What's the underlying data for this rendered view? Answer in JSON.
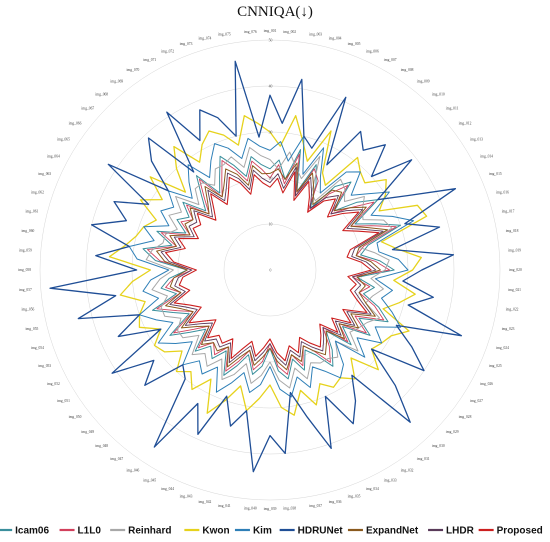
{
  "chart_data": {
    "type": "radar",
    "title": "CNNIQA(↓)",
    "rlim": [
      0,
      50
    ],
    "ring_ticks": [
      0,
      10,
      20,
      30,
      40,
      50
    ],
    "ring_tick_labels": [
      "0",
      "10",
      "20",
      "30",
      "40",
      "50"
    ],
    "grid": true,
    "legend_position": "bottom",
    "categories": [
      "img_001",
      "img_002",
      "img_003",
      "img_004",
      "img_005",
      "img_006",
      "img_007",
      "img_008",
      "img_009",
      "img_010",
      "img_011",
      "img_012",
      "img_013",
      "img_014",
      "img_015",
      "img_016",
      "img_017",
      "img_018",
      "img_019",
      "img_020",
      "img_021",
      "img_022",
      "img_023",
      "img_024",
      "img_025",
      "img_026",
      "img_027",
      "img_028",
      "img_029",
      "img_030",
      "img_031",
      "img_032",
      "img_033",
      "img_034",
      "img_035",
      "img_036",
      "img_037",
      "img_038",
      "img_039",
      "img_040",
      "img_041",
      "img_042",
      "img_043",
      "img_044",
      "img_045",
      "img_046",
      "img_047",
      "img_048",
      "img_049",
      "img_050",
      "img_051",
      "img_052",
      "img_053",
      "img_054",
      "img_055",
      "img_056",
      "img_057",
      "img_058",
      "img_059",
      "img_060",
      "img_061",
      "img_062",
      "img_063",
      "img_064",
      "img_065",
      "img_066",
      "img_067",
      "img_068",
      "img_069",
      "img_070",
      "img_071",
      "img_072",
      "img_073",
      "img_074",
      "img_075",
      "img_076"
    ],
    "series": [
      {
        "name": "Icam06",
        "color": "#3a8f9c",
        "width": 1.0,
        "values": [
          22,
          24,
          20,
          27,
          18,
          25,
          21,
          16,
          23,
          26,
          19,
          24,
          28,
          21,
          25,
          30,
          22,
          20,
          24,
          27,
          19,
          23,
          21,
          25,
          28,
          22,
          26,
          20,
          24,
          18,
          22,
          25,
          21,
          19,
          23,
          20,
          24,
          22,
          17,
          21,
          23,
          19,
          22,
          25,
          20,
          23,
          21,
          24,
          19,
          22,
          26,
          20,
          23,
          27,
          21,
          24,
          22,
          18,
          25,
          28,
          22,
          26,
          20,
          23,
          21,
          24,
          19,
          22,
          26,
          20,
          23,
          27,
          24,
          21,
          25,
          23
        ]
      },
      {
        "name": "L1L0",
        "color": "#d2405c",
        "width": 0.9,
        "values": [
          20,
          23,
          19,
          26,
          17,
          24,
          22,
          15,
          21,
          25,
          18,
          22,
          27,
          20,
          24,
          29,
          21,
          19,
          23,
          26,
          18,
          22,
          20,
          24,
          27,
          21,
          25,
          19,
          23,
          17,
          21,
          24,
          20,
          18,
          22,
          19,
          23,
          21,
          16,
          20,
          22,
          18,
          21,
          24,
          19,
          22,
          20,
          23,
          18,
          21,
          25,
          19,
          22,
          26,
          20,
          23,
          21,
          17,
          24,
          27,
          21,
          25,
          19,
          22,
          20,
          23,
          18,
          21,
          25,
          19,
          22,
          26,
          23,
          20,
          24,
          22
        ]
      },
      {
        "name": "Reinhard",
        "color": "#a8a8a8",
        "width": 1.0,
        "values": [
          24,
          22,
          26,
          23,
          21,
          27,
          19,
          18,
          25,
          24,
          22,
          26,
          24,
          23,
          27,
          28,
          20,
          23,
          26,
          25,
          22,
          25,
          23,
          22,
          26,
          24,
          23,
          22,
          26,
          21,
          24,
          23,
          23,
          22,
          25,
          22,
          26,
          24,
          20,
          23,
          25,
          21,
          24,
          26,
          22,
          25,
          23,
          25,
          21,
          24,
          24,
          22,
          25,
          25,
          23,
          26,
          24,
          21,
          27,
          26,
          24,
          24,
          22,
          25,
          23,
          26,
          21,
          24,
          24,
          22,
          25,
          25,
          26,
          23,
          27,
          25
        ]
      },
      {
        "name": "Kwon",
        "color": "#e6d21c",
        "width": 1.3,
        "values": [
          30,
          27,
          34,
          29,
          25,
          33,
          24,
          22,
          31,
          29,
          28,
          32,
          30,
          27,
          35,
          36,
          25,
          28,
          33,
          31,
          27,
          32,
          29,
          26,
          33,
          30,
          29,
          28,
          32,
          26,
          30,
          28,
          29,
          27,
          31,
          27,
          32,
          30,
          25,
          28,
          31,
          26,
          30,
          34,
          27,
          31,
          28,
          30,
          26,
          29,
          30,
          27,
          31,
          30,
          28,
          33,
          30,
          26,
          35,
          32,
          30,
          29,
          27,
          32,
          28,
          33,
          25,
          30,
          34,
          28,
          31,
          33,
          31,
          28,
          34,
          32
        ]
      },
      {
        "name": "Kim",
        "color": "#2e7fb7",
        "width": 1.0,
        "values": [
          26,
          28,
          24,
          30,
          22,
          29,
          23,
          20,
          27,
          29,
          24,
          27,
          31,
          25,
          29,
          33,
          24,
          24,
          28,
          30,
          23,
          27,
          25,
          28,
          31,
          26,
          29,
          24,
          28,
          21,
          26,
          28,
          25,
          23,
          27,
          24,
          28,
          26,
          21,
          25,
          27,
          23,
          26,
          29,
          24,
          27,
          25,
          28,
          23,
          26,
          29,
          24,
          27,
          30,
          25,
          28,
          26,
          22,
          29,
          31,
          26,
          29,
          24,
          27,
          25,
          28,
          23,
          26,
          29,
          24,
          27,
          30,
          28,
          25,
          29,
          27
        ]
      },
      {
        "name": "HDRUNet",
        "color": "#1f4e96",
        "width": 1.3,
        "values": [
          38,
          32,
          42,
          30,
          28,
          41,
          26,
          36,
          33,
          37,
          30,
          39,
          28,
          34,
          44,
          31,
          38,
          27,
          40,
          33,
          29,
          36,
          31,
          44,
          30,
          35,
          40,
          28,
          37,
          45,
          29,
          34,
          38,
          30,
          41,
          33,
          27,
          40,
          36,
          44,
          31,
          35,
          29,
          39,
          33,
          46,
          30,
          28,
          37,
          32,
          41,
          27,
          36,
          30,
          43,
          34,
          48,
          29,
          38,
          31,
          40,
          33,
          37,
          30,
          42,
          28,
          35,
          39,
          27,
          41,
          32,
          38,
          35,
          30,
          46,
          29
        ]
      },
      {
        "name": "ExpandNet",
        "color": "#8a5a1e",
        "width": 1.0,
        "values": [
          21,
          22,
          20,
          24,
          18,
          23,
          20,
          17,
          22,
          23,
          19,
          22,
          25,
          20,
          23,
          27,
          20,
          19,
          22,
          24,
          19,
          21,
          20,
          22,
          25,
          20,
          23,
          19,
          22,
          18,
          20,
          22,
          20,
          18,
          21,
          19,
          22,
          20,
          17,
          19,
          21,
          18,
          20,
          23,
          19,
          21,
          20,
          22,
          18,
          20,
          23,
          19,
          21,
          24,
          20,
          22,
          21,
          18,
          23,
          25,
          21,
          23,
          19,
          21,
          20,
          22,
          18,
          20,
          23,
          19,
          21,
          24,
          22,
          19,
          23,
          21
        ]
      },
      {
        "name": "LHDR",
        "color": "#5a3a5a",
        "width": 0.9,
        "values": [
          19,
          21,
          18,
          23,
          17,
          22,
          19,
          16,
          20,
          22,
          18,
          21,
          24,
          19,
          22,
          26,
          19,
          18,
          21,
          23,
          18,
          20,
          19,
          21,
          24,
          19,
          22,
          18,
          21,
          17,
          19,
          21,
          19,
          17,
          20,
          18,
          21,
          19,
          16,
          18,
          20,
          17,
          19,
          22,
          18,
          20,
          19,
          21,
          17,
          19,
          22,
          18,
          20,
          23,
          19,
          21,
          20,
          17,
          22,
          24,
          20,
          22,
          18,
          20,
          19,
          21,
          17,
          19,
          22,
          18,
          20,
          23,
          21,
          18,
          22,
          20
        ]
      },
      {
        "name": "Proposed",
        "color": "#cc1f1f",
        "width": 1.1,
        "values": [
          18,
          20,
          17,
          22,
          16,
          21,
          18,
          15,
          19,
          21,
          17,
          20,
          23,
          18,
          21,
          25,
          18,
          17,
          20,
          22,
          17,
          19,
          18,
          20,
          23,
          18,
          21,
          17,
          20,
          16,
          18,
          20,
          18,
          16,
          19,
          17,
          20,
          18,
          15,
          17,
          19,
          16,
          18,
          21,
          17,
          19,
          18,
          20,
          16,
          18,
          21,
          17,
          19,
          22,
          18,
          20,
          19,
          16,
          21,
          23,
          19,
          21,
          17,
          19,
          18,
          20,
          16,
          18,
          21,
          17,
          19,
          22,
          20,
          17,
          21,
          19
        ]
      }
    ]
  }
}
